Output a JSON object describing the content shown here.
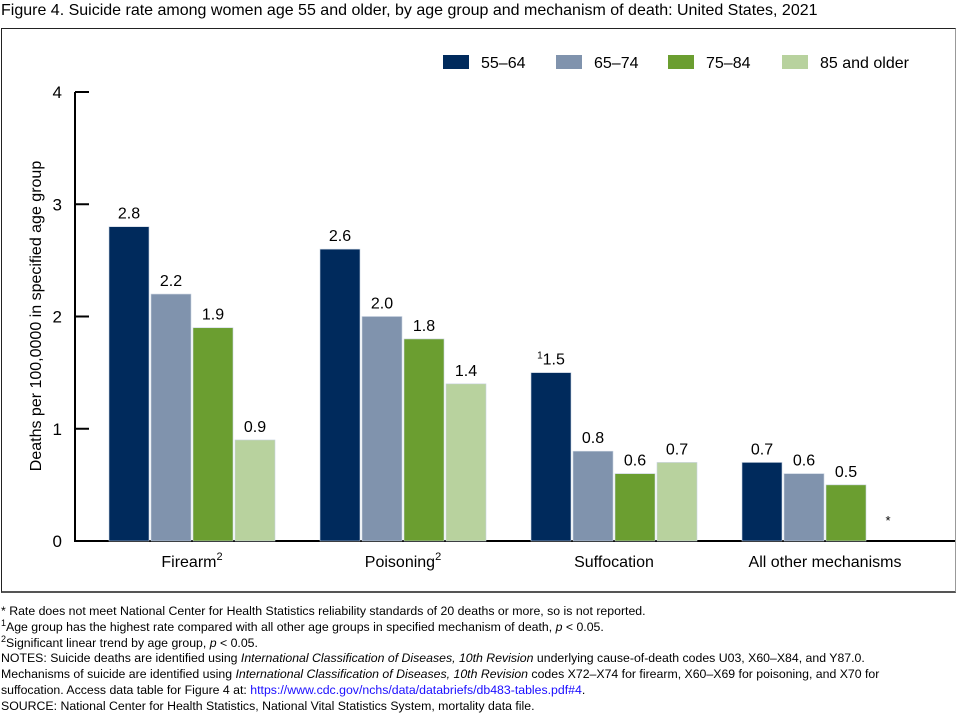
{
  "title": "Figure 4. Suicide rate among women age 55 and older, by age group and mechanism of death: United States, 2021",
  "chart_data": {
    "type": "bar",
    "title": "Figure 4. Suicide rate among women age 55 and older, by age group and mechanism of death: United States, 2021",
    "xlabel": "",
    "ylabel": "Deaths per 100,0000 in specified age group",
    "ylim": [
      0,
      4
    ],
    "yticks": [
      0,
      1,
      2,
      3,
      4
    ],
    "grid": false,
    "legend_position": "top-right",
    "categories": [
      "Firearm",
      "Poisoning",
      "Suffocation",
      "All other mechanisms"
    ],
    "category_superscripts": [
      "2",
      "2",
      "",
      ""
    ],
    "series": [
      {
        "name": "55–64",
        "color": "#002a5c",
        "values": [
          2.8,
          2.6,
          1.5,
          0.7
        ],
        "label_prefix": [
          "",
          "",
          "1",
          ""
        ]
      },
      {
        "name": "65–74",
        "color": "#8093ad",
        "values": [
          2.2,
          2.0,
          0.8,
          0.6
        ],
        "label_prefix": [
          "",
          "",
          "",
          ""
        ]
      },
      {
        "name": "75–84",
        "color": "#6b9e30",
        "values": [
          1.9,
          1.8,
          0.6,
          0.5
        ],
        "label_prefix": [
          "",
          "",
          "",
          ""
        ]
      },
      {
        "name": "85 and older",
        "color": "#b8d29e",
        "values": [
          0.9,
          1.4,
          0.7,
          null
        ],
        "label_prefix": [
          "",
          "",
          "",
          ""
        ]
      }
    ],
    "value_labels": [
      [
        "2.8",
        "2.6",
        "1.5",
        "0.7"
      ],
      [
        "2.2",
        "2.0",
        "0.8",
        "0.6"
      ],
      [
        "1.9",
        "1.8",
        "0.6",
        "0.5"
      ],
      [
        "0.9",
        "1.4",
        "0.7",
        "*"
      ]
    ]
  },
  "footnotes": {
    "asterisk": "* Rate does not meet National Center for Health Statistics reliability standards of 20 deaths or more, so is not reported.",
    "fn1_mark": "1",
    "fn1_a": "Age group has the highest rate compared with all other age groups in specified mechanism of death, ",
    "fn1_p": "p",
    "fn1_b": " < 0.05.",
    "fn2_mark": "2",
    "fn2_a": "Significant linear trend by age group, ",
    "fn2_p": "p",
    "fn2_b": " < 0.05.",
    "notes1_a": "NOTES: Suicide deaths are identified using ",
    "notes1_i": "International Classification of Diseases, 10th Revision",
    "notes1_b": " underlying cause-of-death codes U03, X60–X84, and Y87.0.",
    "notes2_a": "Mechanisms of suicide are identified using ",
    "notes2_i": "International Classification of Diseases, 10th Revision",
    "notes2_b": " codes X72–X74 for firearm, X60–X69 for poisoning, and X70 for",
    "notes3_a": "suffocation. Access data table for Figure 4 at: ",
    "notes3_link": "https://www.cdc.gov/nchs/data/databriefs/db483-tables.pdf#4",
    "notes3_b": ".",
    "source": "SOURCE: National Center for Health Statistics, National Vital Statistics System, mortality data file."
  }
}
